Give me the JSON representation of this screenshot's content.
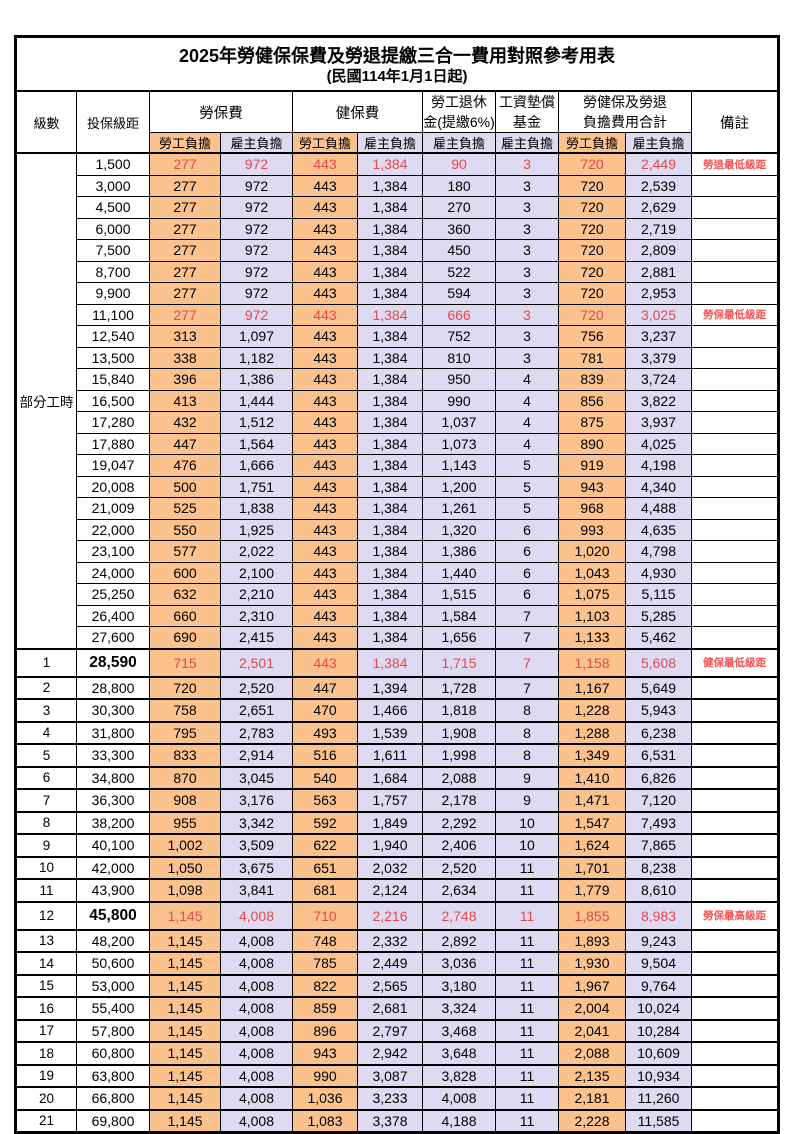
{
  "title": {
    "line1": "2025年勞健保保費及勞退提繳三合一費用對照參考用表",
    "line2": "(民國114年1月1日起)"
  },
  "header": {
    "col_level": "級數",
    "col_bracket": "投保級距",
    "grp_labor_insurance": "勞保費",
    "grp_health_insurance": "健保費",
    "grp_pension_line1": "勞工退休",
    "grp_pension_line2": "金(提繳6%)",
    "grp_wage_fund_line1": "工資墊償",
    "grp_wage_fund_line2": "基金",
    "grp_total_line1": "勞健保及勞退",
    "grp_total_line2": "負擔費用合計",
    "col_remark": "備註",
    "sub_employee": "勞工負擔",
    "sub_employer": "雇主負擔"
  },
  "colors": {
    "employee_bg": "#FBC28E",
    "employer_bg": "#DEDAF2",
    "highlight_text": "#E4494E",
    "remark_text": "#FA5252"
  },
  "table": {
    "part_time_label": "部分工時",
    "rows": [
      {
        "level": "部分工時",
        "levelspan": 23,
        "bracket": "1,500",
        "vals": [
          "277",
          "972",
          "443",
          "1,384",
          "90",
          "3",
          "720",
          "2,449"
        ],
        "remark": "勞退最低級距",
        "hl": true
      },
      {
        "bracket": "3,000",
        "vals": [
          "277",
          "972",
          "443",
          "1,384",
          "180",
          "3",
          "720",
          "2,539"
        ],
        "remark": ""
      },
      {
        "bracket": "4,500",
        "vals": [
          "277",
          "972",
          "443",
          "1,384",
          "270",
          "3",
          "720",
          "2,629"
        ],
        "remark": ""
      },
      {
        "bracket": "6,000",
        "vals": [
          "277",
          "972",
          "443",
          "1,384",
          "360",
          "3",
          "720",
          "2,719"
        ],
        "remark": ""
      },
      {
        "bracket": "7,500",
        "vals": [
          "277",
          "972",
          "443",
          "1,384",
          "450",
          "3",
          "720",
          "2,809"
        ],
        "remark": ""
      },
      {
        "bracket": "8,700",
        "vals": [
          "277",
          "972",
          "443",
          "1,384",
          "522",
          "3",
          "720",
          "2,881"
        ],
        "remark": ""
      },
      {
        "bracket": "9,900",
        "vals": [
          "277",
          "972",
          "443",
          "1,384",
          "594",
          "3",
          "720",
          "2,953"
        ],
        "remark": ""
      },
      {
        "bracket": "11,100",
        "vals": [
          "277",
          "972",
          "443",
          "1,384",
          "666",
          "3",
          "720",
          "3,025"
        ],
        "remark": "勞保最低級距",
        "hl": true
      },
      {
        "bracket": "12,540",
        "vals": [
          "313",
          "1,097",
          "443",
          "1,384",
          "752",
          "3",
          "756",
          "3,237"
        ],
        "remark": ""
      },
      {
        "bracket": "13,500",
        "vals": [
          "338",
          "1,182",
          "443",
          "1,384",
          "810",
          "3",
          "781",
          "3,379"
        ],
        "remark": ""
      },
      {
        "bracket": "15,840",
        "vals": [
          "396",
          "1,386",
          "443",
          "1,384",
          "950",
          "4",
          "839",
          "3,724"
        ],
        "remark": ""
      },
      {
        "bracket": "16,500",
        "vals": [
          "413",
          "1,444",
          "443",
          "1,384",
          "990",
          "4",
          "856",
          "3,822"
        ],
        "remark": ""
      },
      {
        "bracket": "17,280",
        "vals": [
          "432",
          "1,512",
          "443",
          "1,384",
          "1,037",
          "4",
          "875",
          "3,937"
        ],
        "remark": ""
      },
      {
        "bracket": "17,880",
        "vals": [
          "447",
          "1,564",
          "443",
          "1,384",
          "1,073",
          "4",
          "890",
          "4,025"
        ],
        "remark": ""
      },
      {
        "bracket": "19,047",
        "vals": [
          "476",
          "1,666",
          "443",
          "1,384",
          "1,143",
          "5",
          "919",
          "4,198"
        ],
        "remark": ""
      },
      {
        "bracket": "20,008",
        "vals": [
          "500",
          "1,751",
          "443",
          "1,384",
          "1,200",
          "5",
          "943",
          "4,340"
        ],
        "remark": ""
      },
      {
        "bracket": "21,009",
        "vals": [
          "525",
          "1,838",
          "443",
          "1,384",
          "1,261",
          "5",
          "968",
          "4,488"
        ],
        "remark": ""
      },
      {
        "bracket": "22,000",
        "vals": [
          "550",
          "1,925",
          "443",
          "1,384",
          "1,320",
          "6",
          "993",
          "4,635"
        ],
        "remark": ""
      },
      {
        "bracket": "23,100",
        "vals": [
          "577",
          "2,022",
          "443",
          "1,384",
          "1,386",
          "6",
          "1,020",
          "4,798"
        ],
        "remark": ""
      },
      {
        "bracket": "24,000",
        "vals": [
          "600",
          "2,100",
          "443",
          "1,384",
          "1,440",
          "6",
          "1,043",
          "4,930"
        ],
        "remark": ""
      },
      {
        "bracket": "25,250",
        "vals": [
          "632",
          "2,210",
          "443",
          "1,384",
          "1,515",
          "6",
          "1,075",
          "5,115"
        ],
        "remark": ""
      },
      {
        "bracket": "26,400",
        "vals": [
          "660",
          "2,310",
          "443",
          "1,384",
          "1,584",
          "7",
          "1,103",
          "5,285"
        ],
        "remark": ""
      },
      {
        "bracket": "27,600",
        "vals": [
          "690",
          "2,415",
          "443",
          "1,384",
          "1,656",
          "7",
          "1,133",
          "5,462"
        ],
        "remark": ""
      },
      {
        "level": "1",
        "bracket": "28,590",
        "vals": [
          "715",
          "2,501",
          "443",
          "1,384",
          "1,715",
          "7",
          "1,158",
          "5,608"
        ],
        "remark": "健保最低級距",
        "hl": true,
        "key": true,
        "sep": true
      },
      {
        "level": "2",
        "bracket": "28,800",
        "vals": [
          "720",
          "2,520",
          "447",
          "1,394",
          "1,728",
          "7",
          "1,167",
          "5,649"
        ],
        "remark": "",
        "sep": true
      },
      {
        "level": "3",
        "bracket": "30,300",
        "vals": [
          "758",
          "2,651",
          "470",
          "1,466",
          "1,818",
          "8",
          "1,228",
          "5,943"
        ],
        "remark": "",
        "sep": true
      },
      {
        "level": "4",
        "bracket": "31,800",
        "vals": [
          "795",
          "2,783",
          "493",
          "1,539",
          "1,908",
          "8",
          "1,288",
          "6,238"
        ],
        "remark": "",
        "sep": true
      },
      {
        "level": "5",
        "bracket": "33,300",
        "vals": [
          "833",
          "2,914",
          "516",
          "1,611",
          "1,998",
          "8",
          "1,349",
          "6,531"
        ],
        "remark": "",
        "sep": true
      },
      {
        "level": "6",
        "bracket": "34,800",
        "vals": [
          "870",
          "3,045",
          "540",
          "1,684",
          "2,088",
          "9",
          "1,410",
          "6,826"
        ],
        "remark": "",
        "sep": true
      },
      {
        "level": "7",
        "bracket": "36,300",
        "vals": [
          "908",
          "3,176",
          "563",
          "1,757",
          "2,178",
          "9",
          "1,471",
          "7,120"
        ],
        "remark": "",
        "sep": true
      },
      {
        "level": "8",
        "bracket": "38,200",
        "vals": [
          "955",
          "3,342",
          "592",
          "1,849",
          "2,292",
          "10",
          "1,547",
          "7,493"
        ],
        "remark": "",
        "sep": true
      },
      {
        "level": "9",
        "bracket": "40,100",
        "vals": [
          "1,002",
          "3,509",
          "622",
          "1,940",
          "2,406",
          "10",
          "1,624",
          "7,865"
        ],
        "remark": "",
        "sep": true
      },
      {
        "level": "10",
        "bracket": "42,000",
        "vals": [
          "1,050",
          "3,675",
          "651",
          "2,032",
          "2,520",
          "11",
          "1,701",
          "8,238"
        ],
        "remark": "",
        "sep": true
      },
      {
        "level": "11",
        "bracket": "43,900",
        "vals": [
          "1,098",
          "3,841",
          "681",
          "2,124",
          "2,634",
          "11",
          "1,779",
          "8,610"
        ],
        "remark": "",
        "sep": true
      },
      {
        "level": "12",
        "bracket": "45,800",
        "vals": [
          "1,145",
          "4,008",
          "710",
          "2,216",
          "2,748",
          "11",
          "1,855",
          "8,983"
        ],
        "remark": "勞保最高級距",
        "hl": true,
        "key": true,
        "sep": true
      },
      {
        "level": "13",
        "bracket": "48,200",
        "vals": [
          "1,145",
          "4,008",
          "748",
          "2,332",
          "2,892",
          "11",
          "1,893",
          "9,243"
        ],
        "remark": "",
        "sep": true
      },
      {
        "level": "14",
        "bracket": "50,600",
        "vals": [
          "1,145",
          "4,008",
          "785",
          "2,449",
          "3,036",
          "11",
          "1,930",
          "9,504"
        ],
        "remark": "",
        "sep": true
      },
      {
        "level": "15",
        "bracket": "53,000",
        "vals": [
          "1,145",
          "4,008",
          "822",
          "2,565",
          "3,180",
          "11",
          "1,967",
          "9,764"
        ],
        "remark": "",
        "sep": true
      },
      {
        "level": "16",
        "bracket": "55,400",
        "vals": [
          "1,145",
          "4,008",
          "859",
          "2,681",
          "3,324",
          "11",
          "2,004",
          "10,024"
        ],
        "remark": "",
        "sep": true
      },
      {
        "level": "17",
        "bracket": "57,800",
        "vals": [
          "1,145",
          "4,008",
          "896",
          "2,797",
          "3,468",
          "11",
          "2,041",
          "10,284"
        ],
        "remark": "",
        "sep": true
      },
      {
        "level": "18",
        "bracket": "60,800",
        "vals": [
          "1,145",
          "4,008",
          "943",
          "2,942",
          "3,648",
          "11",
          "2,088",
          "10,609"
        ],
        "remark": "",
        "sep": true
      },
      {
        "level": "19",
        "bracket": "63,800",
        "vals": [
          "1,145",
          "4,008",
          "990",
          "3,087",
          "3,828",
          "11",
          "2,135",
          "10,934"
        ],
        "remark": "",
        "sep": true
      },
      {
        "level": "20",
        "bracket": "66,800",
        "vals": [
          "1,145",
          "4,008",
          "1,036",
          "3,233",
          "4,008",
          "11",
          "2,181",
          "11,260"
        ],
        "remark": "",
        "sep": true
      },
      {
        "level": "21",
        "bracket": "69,800",
        "vals": [
          "1,145",
          "4,008",
          "1,083",
          "3,378",
          "4,188",
          "11",
          "2,228",
          "11,585"
        ],
        "remark": "",
        "sep": true
      }
    ]
  }
}
